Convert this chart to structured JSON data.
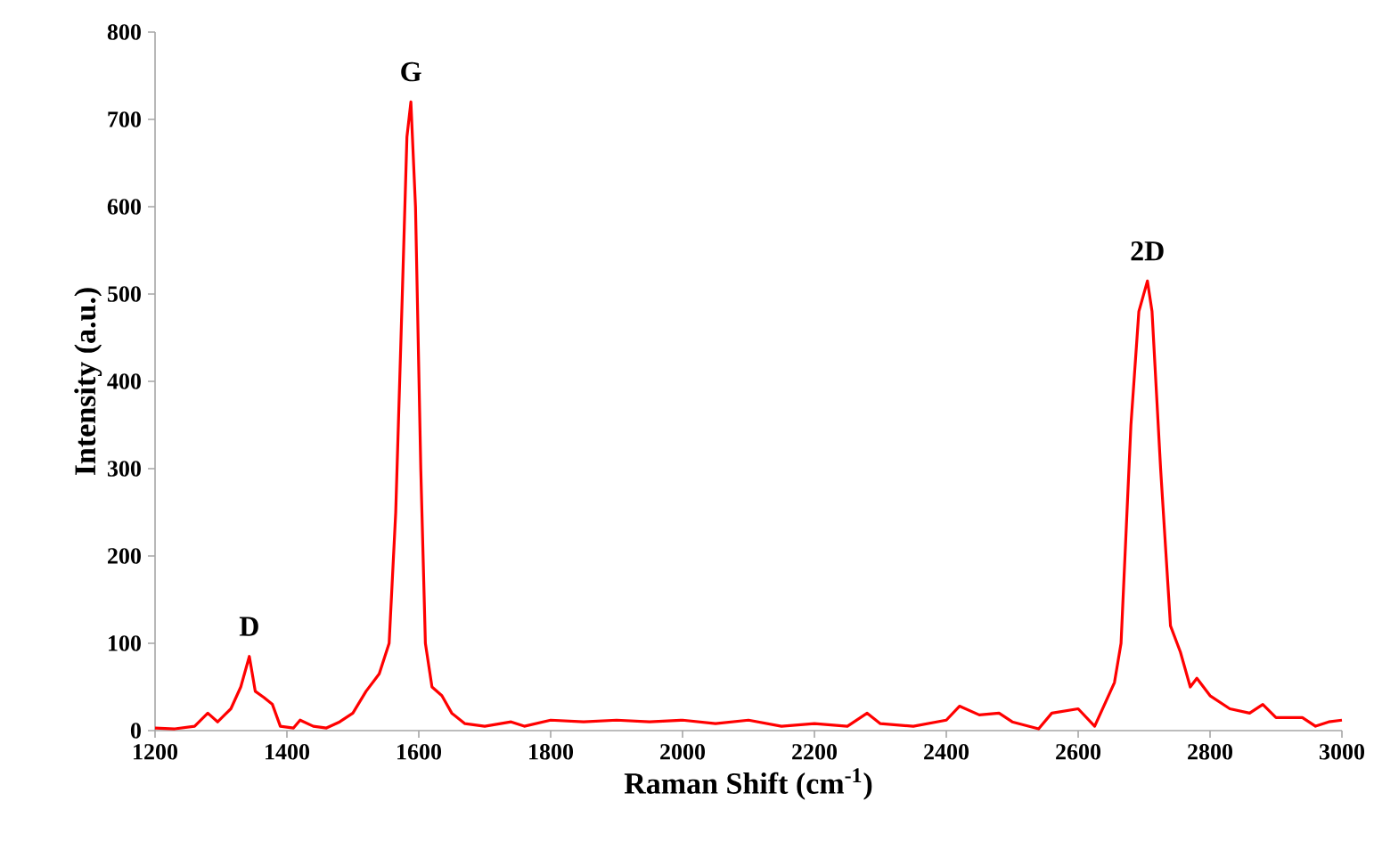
{
  "chart_data": {
    "type": "line",
    "xlabel": "Raman Shift (cm$^{-1}$)",
    "ylabel": "Intensity (a.u.)",
    "xlim": [
      1200,
      3000
    ],
    "xticks": [
      1200,
      1400,
      1600,
      1800,
      2000,
      2200,
      2400,
      2600,
      2800,
      3000
    ],
    "ylim": [
      0,
      800
    ],
    "yticks": [
      0,
      100,
      200,
      300,
      400,
      500,
      600,
      700,
      800
    ],
    "series": [
      {
        "color": "#ff0000",
        "x": [
          1200,
          1230,
          1260,
          1280,
          1295,
          1315,
          1330,
          1343,
          1352,
          1365,
          1378,
          1390,
          1410,
          1420,
          1440,
          1460,
          1480,
          1500,
          1520,
          1540,
          1555,
          1565,
          1575,
          1582,
          1588,
          1595,
          1603,
          1610,
          1620,
          1635,
          1650,
          1670,
          1700,
          1740,
          1760,
          1800,
          1850,
          1900,
          1950,
          2000,
          2050,
          2100,
          2150,
          2200,
          2250,
          2280,
          2300,
          2350,
          2400,
          2420,
          2450,
          2480,
          2500,
          2540,
          2560,
          2600,
          2625,
          2640,
          2655,
          2665,
          2680,
          2692,
          2705,
          2712,
          2725,
          2740,
          2755,
          2770,
          2780,
          2800,
          2830,
          2860,
          2880,
          2900,
          2940,
          2960,
          2980,
          3000
        ],
        "values": [
          3,
          2,
          5,
          20,
          10,
          25,
          50,
          85,
          45,
          38,
          30,
          5,
          3,
          12,
          5,
          3,
          10,
          20,
          45,
          65,
          100,
          250,
          500,
          680,
          720,
          600,
          300,
          100,
          50,
          40,
          20,
          8,
          5,
          10,
          5,
          12,
          10,
          12,
          10,
          12,
          8,
          12,
          5,
          8,
          5,
          20,
          8,
          5,
          12,
          28,
          18,
          20,
          10,
          2,
          20,
          25,
          5,
          30,
          55,
          100,
          350,
          480,
          515,
          480,
          300,
          120,
          90,
          50,
          60,
          40,
          25,
          20,
          30,
          15,
          15,
          5,
          10,
          12
        ]
      }
    ],
    "annotations": [
      {
        "text": "D",
        "x": 1343,
        "y": 85
      },
      {
        "text": "G",
        "x": 1588,
        "y": 720
      },
      {
        "text": "2D",
        "x": 2705,
        "y": 515
      }
    ]
  }
}
